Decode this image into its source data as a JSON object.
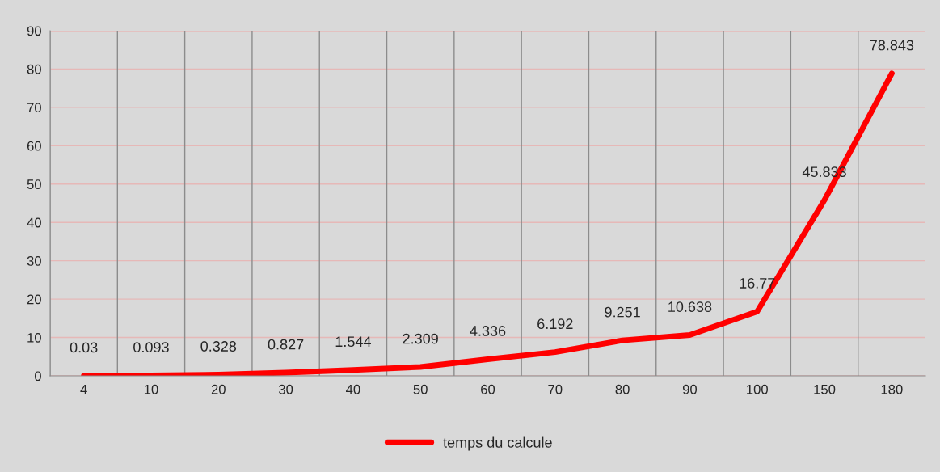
{
  "chart_data": {
    "type": "line",
    "categories": [
      "4",
      "10",
      "20",
      "30",
      "40",
      "50",
      "60",
      "70",
      "80",
      "90",
      "100",
      "150",
      "180"
    ],
    "series": [
      {
        "name": "temps du calcule",
        "color": "#ff0000",
        "values": [
          0.03,
          0.093,
          0.328,
          0.827,
          1.544,
          2.309,
          4.336,
          6.192,
          9.251,
          10.638,
          16.77,
          45.833,
          78.843
        ]
      }
    ],
    "ylim": [
      0,
      90
    ],
    "yticks": [
      0,
      10,
      20,
      30,
      40,
      50,
      60,
      70,
      80,
      90
    ],
    "grid": true,
    "legend": "bottom",
    "data_labels": true,
    "marker": "none",
    "line_style": "solid"
  }
}
